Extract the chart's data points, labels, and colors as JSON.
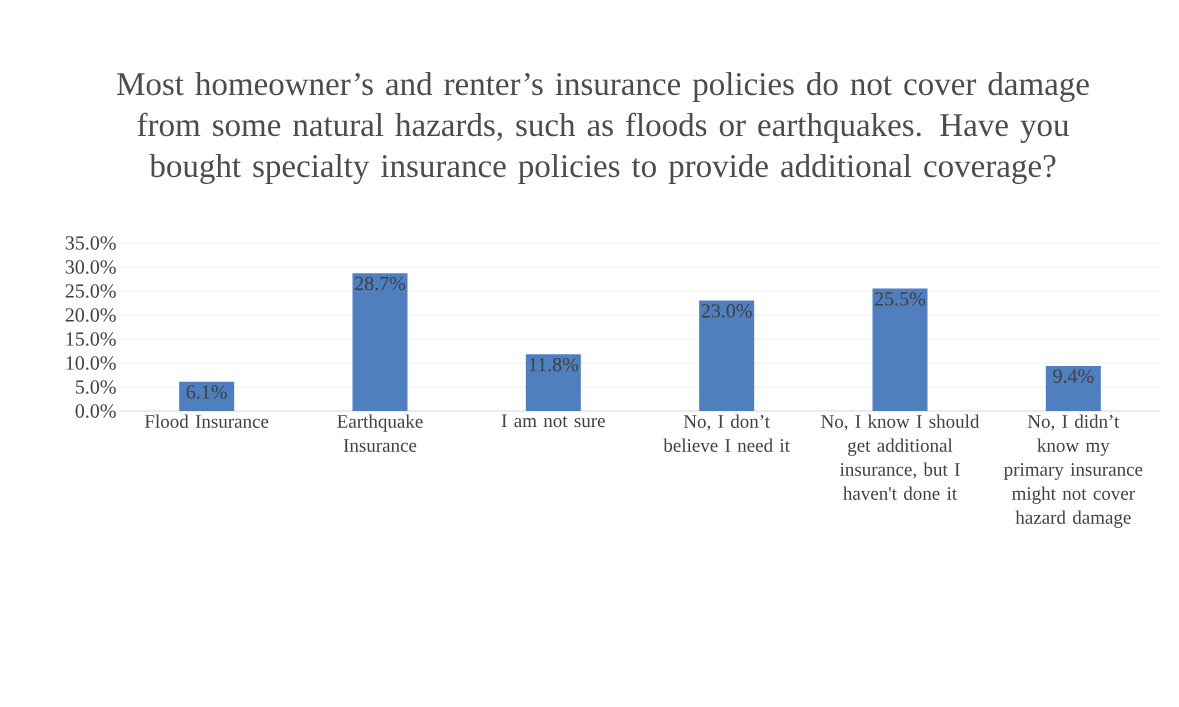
{
  "chart_data": {
    "type": "bar",
    "title": "Most homeowner’s and renter’s insurance policies do not cover damage from some natural hazards, such as floods or earthquakes. Have you bought specialty insurance policies to provide additional coverage?",
    "categories": [
      "Flood Insurance",
      "Earthquake Insurance",
      "I am not sure",
      "No, I don’t believe I need it",
      "No, I know I should get additional insurance, but I haven't done it",
      "No, I didn’t know my primary insurance might not cover hazard damage"
    ],
    "values": [
      6.1,
      28.7,
      11.8,
      23.0,
      25.5,
      9.4
    ],
    "value_labels": [
      "6.1%",
      "28.7%",
      "11.8%",
      "23.0%",
      "25.5%",
      "9.4%"
    ],
    "color": "#4f7fbf",
    "ylim": [
      0,
      35
    ],
    "yticks": [
      {
        "value": 0,
        "label": "0.0%"
      },
      {
        "value": 5,
        "label": "5.0%"
      },
      {
        "value": 10,
        "label": "10.0%"
      },
      {
        "value": 15,
        "label": "15.0%"
      },
      {
        "value": 20,
        "label": "20.0%"
      },
      {
        "value": 25,
        "label": "25.0%"
      },
      {
        "value": 30,
        "label": "30.0%"
      },
      {
        "value": 35,
        "label": "35.0%"
      }
    ],
    "grid": "y"
  }
}
